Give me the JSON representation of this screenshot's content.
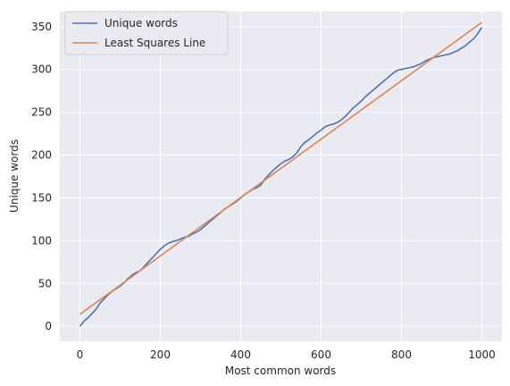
{
  "chart_data": {
    "type": "line",
    "title": "",
    "xlabel": "Most common words",
    "ylabel": "Unique words",
    "xlim": [
      -50,
      1050
    ],
    "ylim": [
      -17.5,
      367.5
    ],
    "xticks": [
      0,
      200,
      400,
      600,
      800,
      1000
    ],
    "yticks": [
      0,
      50,
      100,
      150,
      200,
      250,
      300,
      350
    ],
    "grid": true,
    "legend_position": "top-left",
    "background": "#eaeaf2",
    "series": [
      {
        "name": "Unique words",
        "color": "#4c72b0",
        "x": [
          0,
          10,
          20,
          30,
          40,
          50,
          60,
          70,
          80,
          90,
          100,
          110,
          120,
          130,
          140,
          150,
          160,
          170,
          180,
          190,
          200,
          210,
          220,
          230,
          240,
          250,
          260,
          270,
          280,
          290,
          300,
          310,
          320,
          330,
          340,
          350,
          360,
          370,
          380,
          390,
          400,
          410,
          420,
          430,
          440,
          450,
          460,
          470,
          480,
          490,
          500,
          510,
          520,
          530,
          540,
          550,
          560,
          570,
          580,
          590,
          600,
          610,
          620,
          630,
          640,
          650,
          660,
          670,
          680,
          690,
          700,
          710,
          720,
          730,
          740,
          750,
          760,
          770,
          780,
          790,
          800,
          810,
          820,
          830,
          840,
          850,
          860,
          870,
          880,
          890,
          900,
          910,
          920,
          930,
          940,
          950,
          960,
          970,
          980,
          990,
          1000
        ],
        "y": [
          0,
          6,
          10,
          15,
          20,
          27,
          32,
          37,
          41,
          44,
          47,
          51,
          56,
          60,
          63,
          65,
          70,
          75,
          80,
          85,
          90,
          94,
          97,
          99,
          100,
          102,
          104,
          105,
          108,
          110,
          113,
          117,
          121,
          125,
          129,
          133,
          137,
          140,
          143,
          146,
          150,
          154,
          157,
          160,
          162,
          165,
          172,
          177,
          182,
          186,
          190,
          193,
          195,
          198,
          203,
          210,
          215,
          218,
          222,
          226,
          229,
          233,
          235,
          236,
          238,
          241,
          245,
          250,
          255,
          259,
          263,
          268,
          272,
          276,
          280,
          284,
          288,
          292,
          296,
          299,
          300,
          301,
          302,
          303,
          305,
          307,
          310,
          312,
          314,
          315,
          316,
          317,
          318,
          320,
          322,
          325,
          328,
          332,
          336,
          342,
          349
        ]
      },
      {
        "name": "Least Squares Line",
        "color": "#dd8452",
        "x": [
          0,
          1000
        ],
        "y": [
          14,
          355
        ]
      }
    ]
  }
}
